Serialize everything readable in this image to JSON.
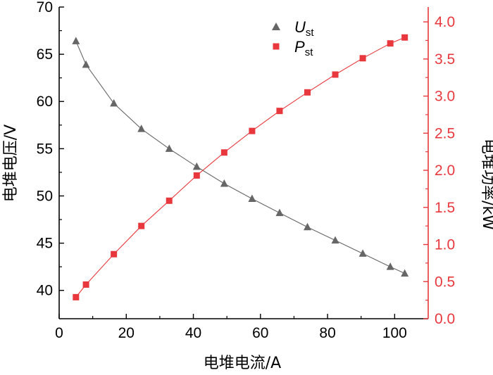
{
  "chart_data": {
    "type": "line",
    "x": [
      5,
      8,
      16.3,
      24.5,
      32.8,
      41,
      49.2,
      57.5,
      65.7,
      74,
      82.3,
      90.5,
      98.7,
      103
    ],
    "xlim": [
      0,
      110
    ],
    "xticks": [
      0,
      20,
      40,
      60,
      80,
      100
    ],
    "xlabel": "电堆电流/A",
    "ylabel_left": "电堆电压/V",
    "ylabel_right": "电堆功率/kW",
    "ylim_left": [
      37,
      70
    ],
    "ylim_right": [
      0,
      4.2
    ],
    "yticks_left": [
      40,
      45,
      50,
      55,
      60,
      65,
      70
    ],
    "yticks_right": [
      0.0,
      0.5,
      1.0,
      1.5,
      2.0,
      2.5,
      3.0,
      3.5,
      4.0
    ],
    "yticks_right_labels": [
      "0.0",
      "0.5",
      "1.0",
      "1.5",
      "2.0",
      "2.5",
      "3.0",
      "3.5",
      "4.0"
    ],
    "grid": false,
    "legend_position": "top-center",
    "series": [
      {
        "name": "U",
        "name_sub": "st",
        "axis": "left",
        "marker": "triangle",
        "color": "#666666",
        "values": [
          66.4,
          63.9,
          59.8,
          57.1,
          55.0,
          53.1,
          51.3,
          49.7,
          48.2,
          46.7,
          45.3,
          43.9,
          42.5,
          41.8
        ]
      },
      {
        "name": "P",
        "name_sub": "st",
        "axis": "right",
        "marker": "square",
        "color": "#e8383d",
        "values": [
          0.29,
          0.46,
          0.87,
          1.25,
          1.59,
          1.93,
          2.24,
          2.53,
          2.8,
          3.05,
          3.29,
          3.51,
          3.71,
          3.79
        ]
      }
    ]
  },
  "colors": {
    "axis_left": "#000000",
    "axis_right": "#e8383d"
  }
}
